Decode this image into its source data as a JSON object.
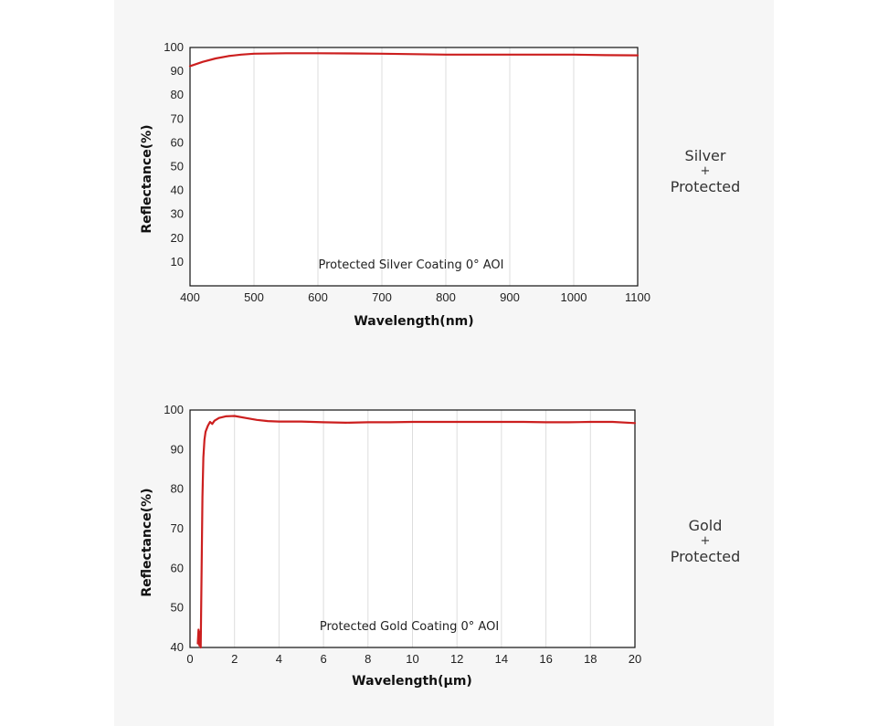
{
  "colors": {
    "curve": "#cc1f1f",
    "grid": "#dddddd",
    "frame": "#111111",
    "panel": "#f6f6f6"
  },
  "labels": {
    "silver": {
      "line1": "Silver",
      "line2": "+",
      "line3": "Protected"
    },
    "gold": {
      "line1": "Gold",
      "line2": "+",
      "line3": "Protected"
    }
  },
  "chart_data": [
    {
      "type": "line",
      "title": "",
      "annotation": "Protected Silver Coating  0°  AOI",
      "xlabel": "Wavelength(nm)",
      "ylabel": "Reflectance(%)",
      "xlim": [
        400,
        1100
      ],
      "ylim": [
        0,
        100
      ],
      "xticks": [
        400,
        500,
        600,
        700,
        800,
        900,
        1000,
        1100
      ],
      "xtick_labels": [
        "400",
        "500",
        "600",
        "700",
        "800",
        "900",
        "1000",
        "1100"
      ],
      "yticks": [
        10,
        20,
        30,
        40,
        50,
        60,
        70,
        80,
        90,
        100
      ],
      "ytick_labels": [
        "10",
        "20",
        "30",
        "40",
        "50",
        "60",
        "70",
        "80",
        "90",
        "100"
      ],
      "grid": true,
      "series": [
        {
          "name": "Protected Silver",
          "x": [
            400,
            420,
            440,
            460,
            480,
            500,
            550,
            600,
            650,
            700,
            750,
            800,
            850,
            900,
            950,
            1000,
            1050,
            1100
          ],
          "y": [
            92.2,
            94.0,
            95.4,
            96.4,
            97.0,
            97.4,
            97.6,
            97.6,
            97.5,
            97.4,
            97.2,
            97.0,
            97.0,
            97.0,
            97.0,
            97.0,
            96.8,
            96.7
          ]
        }
      ]
    },
    {
      "type": "line",
      "title": "",
      "annotation": "Protected Gold Coating  0°  AOI",
      "xlabel": "Wavelength(μm)",
      "ylabel": "Reflectance(%)",
      "xlim": [
        0,
        20
      ],
      "ylim": [
        40,
        100
      ],
      "xticks": [
        0,
        2,
        4,
        6,
        8,
        10,
        12,
        14,
        16,
        18,
        20
      ],
      "xtick_labels": [
        "0",
        "2",
        "4",
        "6",
        "8",
        "10",
        "12",
        "14",
        "16",
        "18",
        "20"
      ],
      "yticks": [
        40,
        50,
        60,
        70,
        80,
        90,
        100
      ],
      "ytick_labels": [
        "40",
        "50",
        "60",
        "70",
        "80",
        "90",
        "100"
      ],
      "grid": true,
      "series": [
        {
          "name": "Protected Gold",
          "x": [
            0.35,
            0.38,
            0.42,
            0.45,
            0.48,
            0.52,
            0.56,
            0.6,
            0.65,
            0.7,
            0.8,
            0.9,
            1.0,
            1.1,
            1.3,
            1.6,
            2.0,
            2.5,
            3.0,
            3.5,
            4.0,
            5.0,
            6.0,
            7.0,
            8.0,
            9.0,
            10.0,
            11.0,
            12.0,
            13.0,
            14.0,
            15.0,
            16.0,
            17.0,
            18.0,
            19.0,
            20.0
          ],
          "y": [
            41.0,
            44.5,
            40.5,
            44.0,
            40.0,
            60.0,
            78.0,
            88.0,
            92.5,
            94.5,
            96.0,
            97.0,
            96.5,
            97.3,
            98.0,
            98.4,
            98.5,
            98.0,
            97.5,
            97.2,
            97.1,
            97.1,
            96.9,
            96.8,
            96.9,
            96.9,
            97.0,
            97.0,
            97.0,
            97.0,
            97.0,
            97.0,
            96.9,
            96.9,
            97.0,
            97.0,
            96.7
          ]
        }
      ]
    }
  ]
}
